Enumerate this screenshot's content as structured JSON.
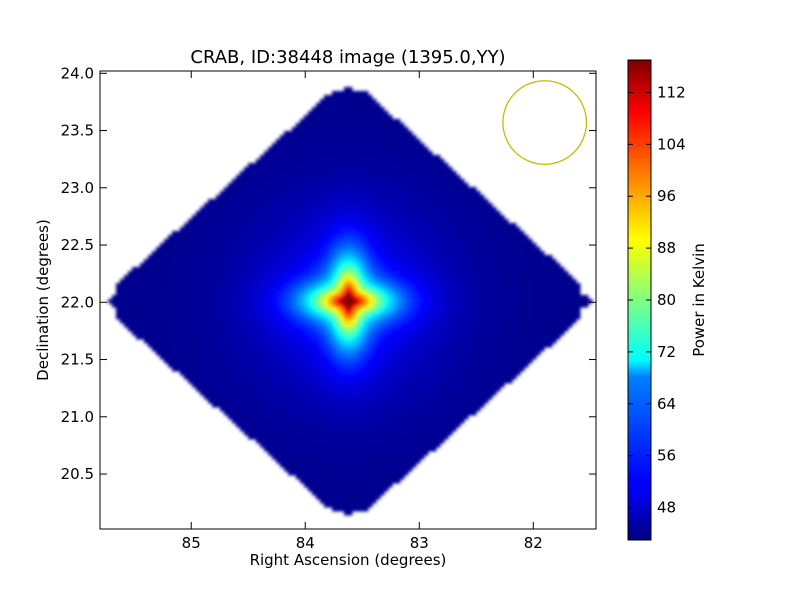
{
  "chart_data": {
    "type": "heatmap",
    "title": "CRAB, ID:38448 image (1395.0,YY)",
    "xlabel": "Right Ascension (degrees)",
    "ylabel": "Declination (degrees)",
    "xlim": [
      85.8,
      81.45
    ],
    "ylim": [
      20.02,
      24.02
    ],
    "x_ticks": [
      85,
      84,
      83,
      82
    ],
    "x_tick_labels": [
      "85",
      "84",
      "83",
      "82"
    ],
    "y_ticks": [
      20.5,
      21.0,
      21.5,
      22.0,
      22.5,
      23.0,
      23.5,
      24.0
    ],
    "y_tick_labels": [
      "20.5",
      "21.0",
      "21.5",
      "22.0",
      "22.5",
      "23.0",
      "23.5",
      "24.0"
    ],
    "colorbar": {
      "label": "Power in Kelvin",
      "range": [
        43,
        117
      ],
      "ticks": [
        48,
        56,
        64,
        72,
        80,
        88,
        96,
        104,
        112
      ],
      "tick_labels": [
        "48",
        "56",
        "64",
        "72",
        "80",
        "88",
        "96",
        "104",
        "112"
      ],
      "colormap": "jet"
    },
    "map": {
      "shape": "diamond",
      "center_ra": 83.62,
      "center_dec": 22.01,
      "half_width_ra": 2.2,
      "half_height_dec": 1.96,
      "background_value": 44,
      "peak_value": 117,
      "peak_ra": 83.62,
      "peak_dec": 22.01,
      "halo_value": 52,
      "color_outside": "#ffffff"
    },
    "beam_circle": {
      "center_ra": 81.9,
      "center_dec": 23.57,
      "radius_dec": 0.365,
      "color": "#bfbf00"
    },
    "grid": false
  }
}
